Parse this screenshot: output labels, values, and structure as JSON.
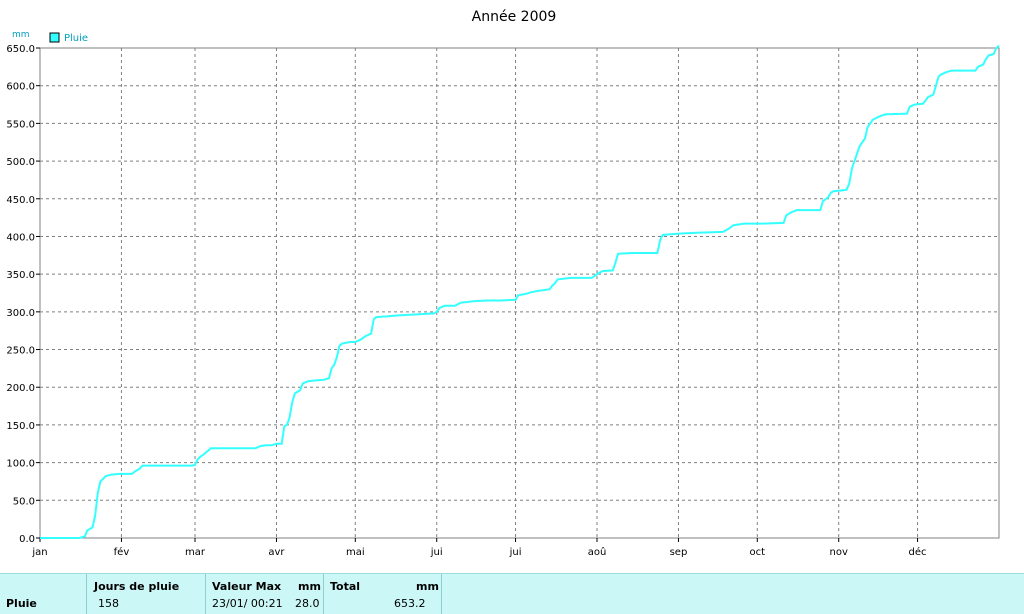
{
  "chart_data": {
    "type": "line",
    "title": "Année 2009",
    "y_unit": "mm",
    "ylim": [
      0,
      650
    ],
    "yticks": [
      "0.0",
      "50.0",
      "100.0",
      "150.0",
      "200.0",
      "250.0",
      "300.0",
      "350.0",
      "400.0",
      "450.0",
      "500.0",
      "550.0",
      "600.0",
      "650.0"
    ],
    "months": [
      "jan",
      "fév",
      "mar",
      "avr",
      "mai",
      "jui",
      "jui",
      "aoû",
      "sep",
      "oct",
      "nov",
      "déc"
    ],
    "legend": {
      "position": "top-left",
      "entries": [
        "Pluie"
      ]
    },
    "grid": true,
    "series": [
      {
        "name": "Pluie",
        "color": "#33ffff",
        "points": [
          [
            0,
            0
          ],
          [
            15,
            0
          ],
          [
            17,
            2
          ],
          [
            18,
            10
          ],
          [
            20,
            14
          ],
          [
            21,
            30
          ],
          [
            22,
            60
          ],
          [
            23,
            75
          ],
          [
            25,
            82
          ],
          [
            27,
            84
          ],
          [
            30,
            85
          ],
          [
            35,
            85
          ],
          [
            36,
            88
          ],
          [
            38,
            92
          ],
          [
            39,
            96
          ],
          [
            45,
            96
          ],
          [
            52,
            96
          ],
          [
            58,
            96
          ],
          [
            59,
            97
          ],
          [
            60,
            104
          ],
          [
            61,
            108
          ],
          [
            62,
            110
          ],
          [
            63,
            113
          ],
          [
            64,
            116
          ],
          [
            65,
            119
          ],
          [
            75,
            119
          ],
          [
            82,
            119
          ],
          [
            84,
            122
          ],
          [
            86,
            123
          ],
          [
            88,
            123
          ],
          [
            90,
            125
          ],
          [
            92,
            125
          ],
          [
            93,
            148
          ],
          [
            94,
            150
          ],
          [
            95,
            160
          ],
          [
            96,
            180
          ],
          [
            97,
            192
          ],
          [
            98,
            194
          ],
          [
            99,
            196
          ],
          [
            100,
            205
          ],
          [
            102,
            208
          ],
          [
            105,
            209
          ],
          [
            108,
            210
          ],
          [
            110,
            212
          ],
          [
            111,
            225
          ],
          [
            112,
            230
          ],
          [
            113,
            240
          ],
          [
            114,
            255
          ],
          [
            115,
            258
          ],
          [
            118,
            260
          ],
          [
            120,
            260
          ],
          [
            122,
            263
          ],
          [
            124,
            268
          ],
          [
            126,
            271
          ],
          [
            127,
            290
          ],
          [
            128,
            293
          ],
          [
            132,
            294
          ],
          [
            135,
            295
          ],
          [
            140,
            296
          ],
          [
            145,
            297
          ],
          [
            150,
            298
          ],
          [
            151,
            300
          ],
          [
            152,
            305
          ],
          [
            154,
            308
          ],
          [
            158,
            308
          ],
          [
            160,
            312
          ],
          [
            165,
            314
          ],
          [
            170,
            315
          ],
          [
            175,
            315
          ],
          [
            181,
            316
          ],
          [
            182,
            322
          ],
          [
            185,
            324
          ],
          [
            187,
            326
          ],
          [
            190,
            328
          ],
          [
            194,
            330
          ],
          [
            195,
            335
          ],
          [
            196,
            338
          ],
          [
            197,
            343
          ],
          [
            202,
            345
          ],
          [
            210,
            345
          ],
          [
            212,
            350
          ],
          [
            214,
            354
          ],
          [
            218,
            355
          ],
          [
            219,
            365
          ],
          [
            220,
            377
          ],
          [
            225,
            378
          ],
          [
            235,
            378
          ],
          [
            236,
            395
          ],
          [
            237,
            402
          ],
          [
            240,
            403
          ],
          [
            245,
            404
          ],
          [
            250,
            405
          ],
          [
            260,
            406
          ],
          [
            262,
            410
          ],
          [
            264,
            415
          ],
          [
            268,
            417
          ],
          [
            275,
            417
          ],
          [
            283,
            418
          ],
          [
            284,
            428
          ],
          [
            286,
            432
          ],
          [
            288,
            435
          ],
          [
            295,
            435
          ],
          [
            297,
            435
          ],
          [
            298,
            447
          ],
          [
            300,
            452
          ],
          [
            301,
            458
          ],
          [
            302,
            460
          ],
          [
            305,
            461
          ],
          [
            307,
            462
          ],
          [
            308,
            470
          ],
          [
            309,
            490
          ],
          [
            310,
            500
          ],
          [
            311,
            510
          ],
          [
            312,
            520
          ],
          [
            314,
            530
          ],
          [
            315,
            545
          ],
          [
            317,
            555
          ],
          [
            320,
            560
          ],
          [
            322,
            562
          ],
          [
            330,
            563
          ],
          [
            331,
            572
          ],
          [
            333,
            575
          ],
          [
            336,
            576
          ],
          [
            337,
            580
          ],
          [
            338,
            585
          ],
          [
            340,
            588
          ],
          [
            341,
            600
          ],
          [
            342,
            612
          ],
          [
            343,
            615
          ],
          [
            345,
            618
          ],
          [
            347,
            620
          ],
          [
            356,
            620
          ],
          [
            357,
            625
          ],
          [
            359,
            628
          ],
          [
            360,
            635
          ],
          [
            361,
            640
          ],
          [
            363,
            642
          ],
          [
            364,
            650
          ],
          [
            365,
            653.2
          ]
        ]
      }
    ]
  },
  "stats": {
    "row_label": "Pluie",
    "rain_days_header": "Jours de pluie",
    "rain_days_value": "158",
    "max_header": "Valeur Max",
    "max_unit": "mm",
    "max_date": "23/01/  00:21",
    "max_value": "28.0",
    "total_header": "Total",
    "total_unit": "mm",
    "total_value": "653.2"
  }
}
